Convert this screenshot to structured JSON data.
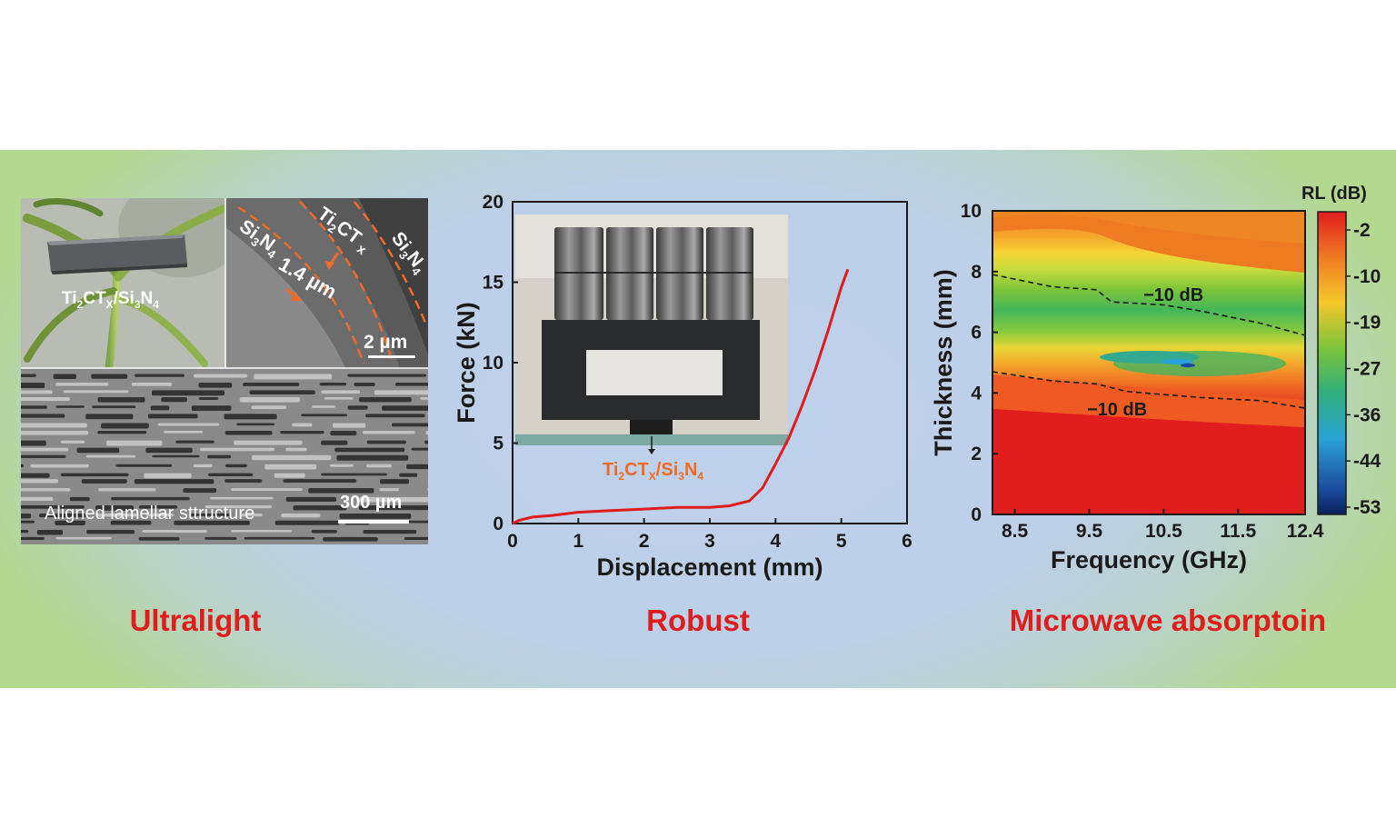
{
  "panels": {
    "left": {
      "photo_label": {
        "main": "Ti",
        "s1": "2",
        "mid": "CT",
        "s2": "X",
        "mid2": "/Si",
        "s3": "3",
        "mid3": "N",
        "s4": "4"
      },
      "sem_labels": {
        "ti2ctx": {
          "a": "Ti",
          "b": "2",
          "c": "CT",
          "d": "x"
        },
        "si3n4_left": {
          "a": "Si",
          "b": "3",
          "c": "N",
          "d": "4"
        },
        "si3n4_right": {
          "a": "Si",
          "b": "3",
          "c": "N",
          "d": "4"
        },
        "thickness": "1.4 µm",
        "scale": "2 µm"
      },
      "bottom_labels": {
        "caption": "Aligned lamellar sttructure",
        "scale": "300 µm"
      },
      "title": "Ultralight"
    },
    "middle": {
      "inset_label": {
        "a": "Ti",
        "b": "2",
        "c": "CT",
        "d": "X",
        "e": "/Si",
        "f": "3",
        "g": "N",
        "h": "4"
      },
      "title": "Robust"
    },
    "right": {
      "colorbar": {
        "title": "RL (dB)",
        "ticks": [
          "-2",
          "-10",
          "-19",
          "-27",
          "-36",
          "-44",
          "-53"
        ],
        "colors": [
          "#e01d1d",
          "#f07a24",
          "#f5c82a",
          "#7cc43a",
          "#2fae7d",
          "#2aa2d6",
          "#1b4a9c",
          "#0b1f5a"
        ]
      },
      "contour_labels": [
        "−10 dB",
        "−10 dB"
      ],
      "title": "Microwave absorptoin"
    }
  },
  "chart_data": [
    {
      "type": "line",
      "xlabel": "Displacement (mm)",
      "ylabel": "Force (kN)",
      "xlim": [
        0,
        6
      ],
      "ylim": [
        0,
        20
      ],
      "xticks": [
        "0",
        "1",
        "2",
        "3",
        "4",
        "5",
        "6"
      ],
      "yticks": [
        "0",
        "5",
        "10",
        "15",
        "20"
      ],
      "series": [
        {
          "color": "#e01d1d",
          "x": [
            0,
            0.1,
            0.3,
            0.6,
            1.0,
            1.5,
            2.0,
            2.5,
            3.0,
            3.3,
            3.6,
            3.8,
            4.0,
            4.2,
            4.4,
            4.6,
            4.8,
            5.0,
            5.1
          ],
          "y": [
            0,
            0.2,
            0.4,
            0.5,
            0.7,
            0.8,
            0.9,
            1.0,
            1.0,
            1.1,
            1.4,
            2.2,
            3.7,
            5.3,
            7.3,
            9.5,
            12.0,
            14.7,
            15.8
          ]
        }
      ]
    },
    {
      "type": "heatmap",
      "xlabel": "Frequency (GHz)",
      "ylabel": "Thickness (mm)",
      "xlim": [
        8.2,
        12.4
      ],
      "ylim": [
        0,
        10
      ],
      "xticks": [
        "8.5",
        "9.5",
        "10.5",
        "11.5",
        "12.4"
      ],
      "yticks": [
        "0",
        "2",
        "4",
        "6",
        "8",
        "10"
      ],
      "minimum": {
        "frequency_GHz": 10.9,
        "thickness_mm": 4.9,
        "RL_dB": -53
      },
      "contour_minus10dB_upper": {
        "x": [
          8.2,
          9.0,
          9.6,
          9.8,
          10.5,
          11.0,
          11.8,
          12.4
        ],
        "y": [
          7.9,
          7.5,
          7.4,
          7.0,
          6.9,
          6.7,
          6.3,
          5.9
        ]
      },
      "contour_minus10dB_lower": {
        "x": [
          8.2,
          9.0,
          9.6,
          10.0,
          10.5,
          11.0,
          11.8,
          12.4
        ],
        "y": [
          4.7,
          4.4,
          4.3,
          4.05,
          3.95,
          3.85,
          3.75,
          3.5
        ]
      }
    }
  ]
}
